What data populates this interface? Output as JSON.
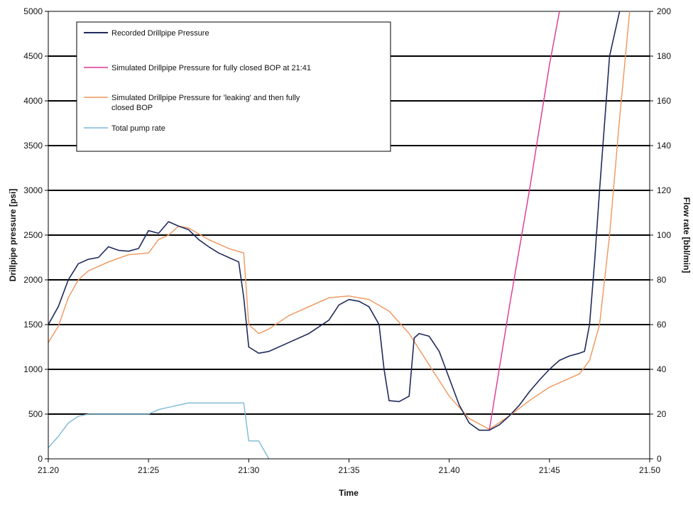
{
  "chart_data": {
    "type": "line",
    "xlabel": "Time",
    "ylabel": "Drillpipe pressure [psi]",
    "y2label": "Flow rate [bbl/min]",
    "x_tick_labels": [
      "21.20",
      "21:25",
      "21:30",
      "21:35",
      "21.40",
      "21:45",
      "21.50"
    ],
    "xlim": [
      "21:20",
      "21:50"
    ],
    "ylim": [
      0,
      5000
    ],
    "y_ticks": [
      0,
      500,
      1000,
      1500,
      2000,
      2500,
      3000,
      3500,
      4000,
      4500,
      5000
    ],
    "y2lim": [
      0,
      200
    ],
    "y2_ticks": [
      0,
      20,
      40,
      60,
      80,
      100,
      120,
      140,
      160,
      180,
      200
    ],
    "grid": "horizontal",
    "legend_position": "top-left",
    "series": [
      {
        "name": "Recorded Drillpipe Pressure",
        "color": "#1f2a5c",
        "axis": "left",
        "x": [
          "21:20",
          "21:20:30",
          "21:21",
          "21:21:30",
          "21:22",
          "21:22:30",
          "21:23",
          "21:23:30",
          "21:24",
          "21:24:30",
          "21:25",
          "21:25:30",
          "21:26",
          "21:26:30",
          "21:27",
          "21:27:30",
          "21:28",
          "21:28:30",
          "21:29",
          "21:29:30",
          "21:29:45",
          "21:30",
          "21:30:30",
          "21:31",
          "21:32",
          "21:33",
          "21:34",
          "21:34:30",
          "21:35",
          "21:35:30",
          "21:36",
          "21:36:30",
          "21:36:45",
          "21:37",
          "21:37:30",
          "21:38",
          "21:38:15",
          "21:38:30",
          "21:39",
          "21:39:30",
          "21:40",
          "21:40:30",
          "21:41",
          "21:41:30",
          "21:42",
          "21:42:30",
          "21:43",
          "21:43:30",
          "21:44",
          "21:44:30",
          "21:45",
          "21:45:30",
          "21:46",
          "21:46:30",
          "21:46:45",
          "21:47",
          "21:47:15",
          "21:47:30",
          "21:48",
          "21:48:30"
        ],
        "values": [
          1500,
          1700,
          2000,
          2180,
          2230,
          2250,
          2370,
          2330,
          2320,
          2350,
          2550,
          2520,
          2650,
          2600,
          2560,
          2450,
          2370,
          2300,
          2250,
          2200,
          1800,
          1250,
          1180,
          1200,
          1300,
          1400,
          1550,
          1720,
          1780,
          1760,
          1700,
          1500,
          1000,
          650,
          640,
          700,
          1350,
          1400,
          1370,
          1200,
          900,
          600,
          400,
          320,
          320,
          380,
          480,
          600,
          750,
          880,
          1000,
          1100,
          1150,
          1180,
          1200,
          1500,
          2200,
          3000,
          4500,
          5000
        ]
      },
      {
        "name": "Simulated Drillpipe Pressure for fully closed BOP at 21:41",
        "color": "#e0338f",
        "axis": "left",
        "x": [
          "21:42",
          "21:43",
          "21:44",
          "21:44:30",
          "21:45",
          "21:45:30"
        ],
        "values": [
          320,
          1700,
          3000,
          3700,
          4400,
          5000
        ]
      },
      {
        "name": "Simulated Drillpipe Pressure for 'leaking' and then fully closed BOP",
        "color": "#f0955a",
        "axis": "left",
        "x": [
          "21:20",
          "21:20:30",
          "21:21",
          "21:21:30",
          "21:22",
          "21:23",
          "21:24",
          "21:25",
          "21:25:30",
          "21:26",
          "21:26:30",
          "21:27",
          "21:28",
          "21:29",
          "21:29:45",
          "21:30",
          "21:30:30",
          "21:31",
          "21:32",
          "21:33",
          "21:34",
          "21:35",
          "21:36",
          "21:37",
          "21:38",
          "21:39",
          "21:40",
          "21:41",
          "21:42",
          "21:43",
          "21:44",
          "21:45",
          "21:46",
          "21:46:30",
          "21:47",
          "21:47:30",
          "21:48",
          "21:48:30",
          "21:49"
        ],
        "values": [
          1300,
          1480,
          1800,
          2000,
          2100,
          2200,
          2280,
          2300,
          2450,
          2500,
          2600,
          2580,
          2450,
          2350,
          2300,
          1500,
          1400,
          1450,
          1600,
          1700,
          1800,
          1820,
          1780,
          1650,
          1400,
          1050,
          700,
          450,
          330,
          480,
          650,
          800,
          900,
          950,
          1100,
          1500,
          2500,
          3800,
          5000
        ]
      },
      {
        "name": "Total pump rate",
        "color": "#7ab8d8",
        "axis": "right",
        "x": [
          "21:20",
          "21:20:30",
          "21:21",
          "21:21:30",
          "21:22",
          "21:23",
          "21:24",
          "21:25",
          "21:25:30",
          "21:26",
          "21:27",
          "21:28",
          "21:29",
          "21:29:45",
          "21:30",
          "21:30:30",
          "21:31"
        ],
        "values": [
          5,
          10,
          16,
          19,
          20,
          20,
          20,
          20,
          22,
          23,
          25,
          25,
          25,
          25,
          8,
          8,
          0
        ]
      }
    ]
  }
}
